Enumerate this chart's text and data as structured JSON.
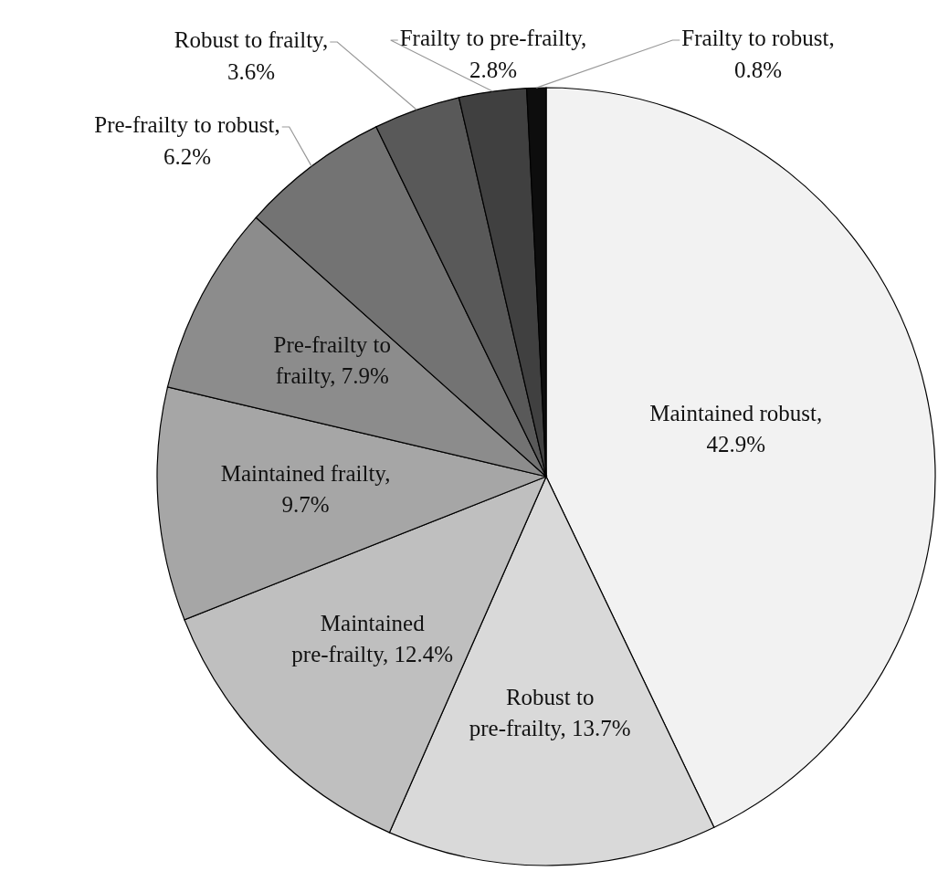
{
  "chart_data": {
    "type": "pie",
    "categories": [
      "Maintained robust",
      "Robust to pre-frailty",
      "Maintained pre-frailty",
      "Maintained frailty",
      "Pre-frailty to frailty",
      "Pre-frailty to robust",
      "Robust to frailty",
      "Frailty to pre-frailty",
      "Frailty to robust"
    ],
    "values": [
      42.9,
      13.7,
      12.4,
      9.7,
      7.9,
      6.2,
      3.6,
      2.8,
      0.8
    ],
    "value_labels": [
      ", 42.9%",
      ", 13.7%",
      ", 12.4%",
      ", 9.7%",
      ", 7.9%",
      ", 6.2%",
      ", 3.6%",
      ", 2.8%",
      ", 0.8%"
    ],
    "colors": [
      "#f2f2f2",
      "#d9d9d9",
      "#bfbfbf",
      "#a6a6a6",
      "#8c8c8c",
      "#737373",
      "#595959",
      "#404040",
      "#0d0d0d"
    ],
    "legend": false
  }
}
